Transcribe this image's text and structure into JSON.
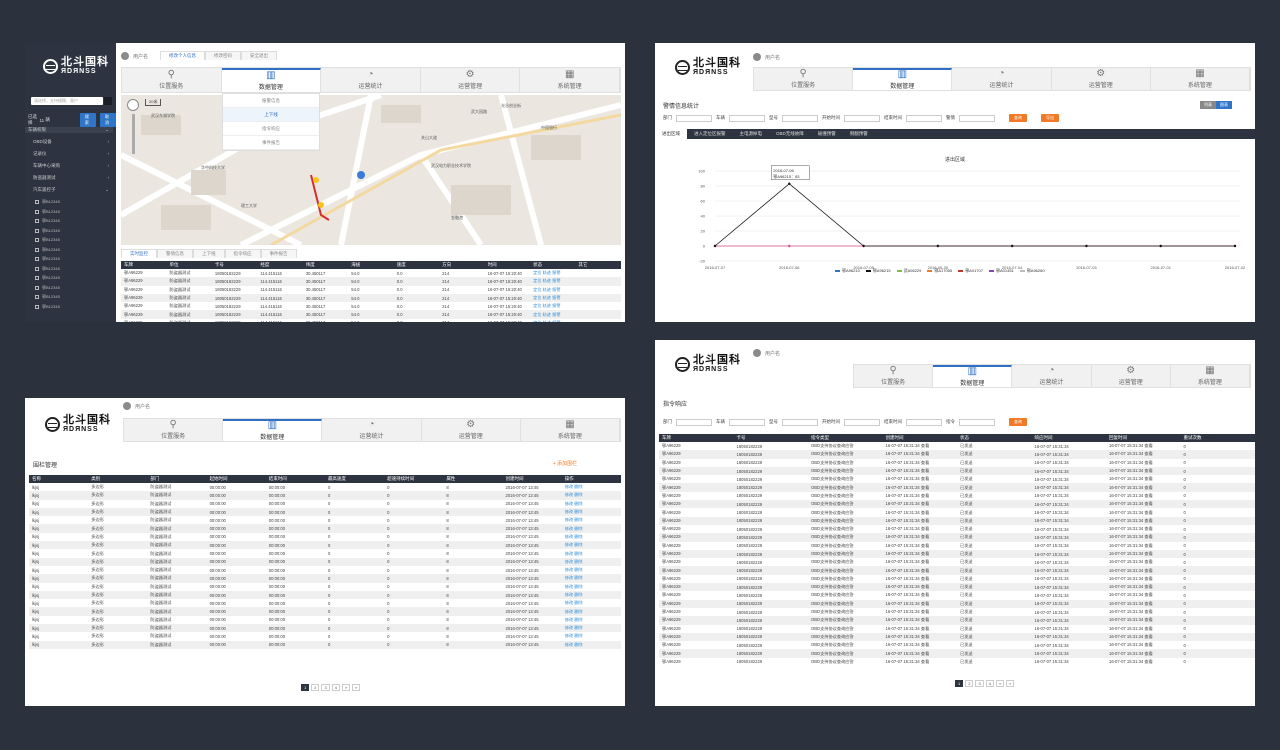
{
  "logo": {
    "cn": "北斗国科",
    "en": "ЯDЯNSS"
  },
  "user": {
    "name": "用户名"
  },
  "nav_tabs": [
    {
      "label": "位置服务",
      "icon": "location-pin-icon"
    },
    {
      "label": "数据管理",
      "icon": "bar-chart-icon"
    },
    {
      "label": "运营统计",
      "icon": "pie-chart-icon"
    },
    {
      "label": "运营管理",
      "icon": "gear-icon"
    },
    {
      "label": "系统管理",
      "icon": "grid-plus-icon"
    }
  ],
  "p1": {
    "sidebar": {
      "search_placeholder": "请选择，支持模糊、客户",
      "selected": "已选择",
      "count": "11",
      "unit": "辆",
      "btn1": "搜索",
      "btn2": "取消",
      "group": "车辆权限",
      "items": [
        "OBD设备",
        "记录仪",
        "车辆中心采购",
        "防盗器测试",
        "汽车遥控子"
      ],
      "vehicles": [
        "鄂B12345",
        "鄂B12345",
        "鄂B12345",
        "鄂B12345",
        "鄂B12345",
        "鄂B12345",
        "鄂B12345",
        "鄂B12345",
        "鄂B12345",
        "鄂B12345",
        "鄂B12345",
        "鄂B12345"
      ]
    },
    "subtabs": [
      "修改个人信息",
      "修改密码",
      "安全退出"
    ],
    "dropdown": [
      "报警信息",
      "上下线",
      "指令响应",
      "事件报告"
    ],
    "map_scale": "20米",
    "map_labels": [
      "武汉东湖学院",
      "武汉电力职业技术学院",
      "光谷创业街",
      "武大园路",
      "关山大道",
      "中国银行",
      "华中科技大学",
      "金融港",
      "理工大学"
    ],
    "bottom_tabs": [
      "实时监控",
      "警情信息",
      "上下线",
      "指令响应",
      "事件报告"
    ],
    "table": {
      "headers": [
        "车牌",
        "单位",
        "卡号",
        "经度",
        "纬度",
        "海拔",
        "速度",
        "方向",
        "时间",
        "状态",
        "其它"
      ],
      "rows": [
        [
          "鄂A96229",
          "防盗器测试",
          "18050182229",
          "114.415116",
          "30.450117",
          "54.0",
          "0.0",
          "214",
          "16-07-07 15:20:40",
          "定位 轨迹 报警",
          ""
        ],
        [
          "鄂A96229",
          "防盗器测试",
          "18050182229",
          "114.415116",
          "30.450117",
          "54.0",
          "0.0",
          "214",
          "16-07-07 15:20:40",
          "定位 轨迹 报警",
          ""
        ],
        [
          "鄂A96229",
          "防盗器测试",
          "18050182229",
          "114.415116",
          "30.450117",
          "54.0",
          "0.0",
          "214",
          "16-07-07 15:20:40",
          "定位 轨迹 报警",
          ""
        ],
        [
          "鄂A96229",
          "防盗器测试",
          "18050182229",
          "114.415116",
          "30.450117",
          "54.0",
          "0.0",
          "214",
          "16-07-07 15:20:40",
          "定位 轨迹 报警",
          ""
        ],
        [
          "鄂A96229",
          "防盗器测试",
          "18050182229",
          "114.415116",
          "30.450117",
          "54.0",
          "0.0",
          "214",
          "16-07-07 15:20:40",
          "定位 轨迹 报警",
          ""
        ],
        [
          "鄂A96229",
          "防盗器测试",
          "18050182229",
          "114.415116",
          "30.450117",
          "54.0",
          "0.0",
          "214",
          "16-07-07 15:20:40",
          "定位 轨迹 报警",
          ""
        ],
        [
          "鄂A96229",
          "防盗器测试",
          "18050182229",
          "114.415116",
          "30.450117",
          "54.0",
          "0.0",
          "214",
          "16-07-07 15:20:40",
          "定位 轨迹 报警",
          ""
        ]
      ]
    }
  },
  "p2": {
    "title": "警情信息统计",
    "filters": [
      "部门",
      "车辆",
      "型号",
      "开始时间",
      "结束时间",
      "警情"
    ],
    "btn_query": "查询",
    "btn_export": "导出",
    "seg": [
      "列表",
      "图表"
    ],
    "chart_tabs": [
      "进出区域",
      "进入定位区报警",
      "主电源掉电",
      "OBD无线故障",
      "碰撞预警",
      "侧翻预警"
    ],
    "chart_title": "进出区域",
    "tooltip_date": "2016-07-06",
    "tooltip_val": "鄂A96215：83",
    "legend": [
      "鄂A96210",
      "鄂A96215",
      "武A96229",
      "鄂A17055",
      "鄂A01707",
      "鄂A01451",
      "鄂A96260"
    ]
  },
  "chart_data": {
    "type": "line",
    "title": "进出区域",
    "x": [
      "2016-07-07",
      "2016-07-06",
      "2016-07-05",
      "2016-06-30",
      "2016-07-04",
      "2016-07-03",
      "2016-07-01",
      "2016-07-02"
    ],
    "ylim": [
      -20,
      100
    ],
    "yticks": [
      -20,
      0,
      20,
      40,
      60,
      80,
      100
    ],
    "series": [
      {
        "name": "鄂A96215",
        "color": "#111111",
        "values": [
          0,
          83,
          0,
          0,
          0,
          0,
          0,
          0
        ]
      },
      {
        "name": "鄂A96260",
        "color": "#d64a8c",
        "values": [
          0,
          0,
          0,
          0,
          0,
          0,
          0,
          0
        ]
      }
    ],
    "grid": true,
    "legend_position": "bottom"
  },
  "p3": {
    "title": "围栏管理",
    "add_btn": "+ 添加围栏",
    "headers": [
      "名称",
      "类别",
      "部门",
      "起始时间",
      "结束时间",
      "最高速度",
      "超速持续时间",
      "属性",
      "创建时间",
      "操作"
    ],
    "row": [
      "lkjsj",
      "多边形",
      "防盗器测试",
      "00:00:00",
      "00:00:00",
      "0",
      "0",
      "8",
      "2016-07-07 13:45",
      "修改 删除"
    ],
    "row_count": 20,
    "pager": [
      "1",
      "2",
      "3",
      "4",
      "»",
      "»"
    ]
  },
  "p4": {
    "title": "指令响应",
    "filters": [
      "部门",
      "车辆",
      "型号",
      "开始时间",
      "结束时间",
      "指令"
    ],
    "btn_query": "查询",
    "headers": [
      "车牌",
      "卡号",
      "指令类型",
      "创建时间",
      "状态",
      "响应时间",
      "回复时间",
      "重试次数"
    ],
    "row": [
      "鄂A96229",
      "18050182229",
      "OBD支持协议查询应答",
      "16-07-07 15:31:34 查看",
      "已发送",
      "16-07-07 15:31:34",
      "16-07-07 15:31:34 查看",
      "0"
    ],
    "row_count": 27,
    "pager": [
      "1",
      "2",
      "3",
      "4",
      "»",
      "»"
    ]
  }
}
